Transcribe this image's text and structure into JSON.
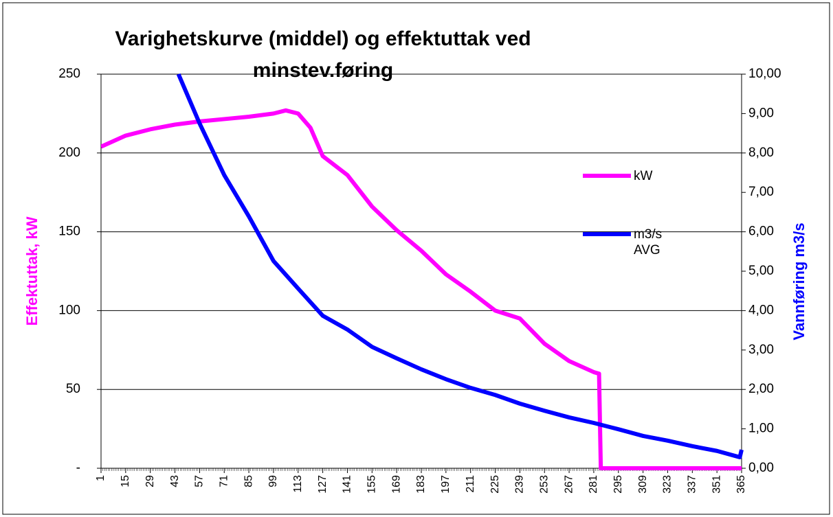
{
  "chart_data": {
    "type": "line",
    "title": [
      "Varighetskurve (middel) og effektuttak ved",
      "minstev.føring"
    ],
    "y_label": "Effektuttak, kW",
    "y2_label": "Vannføring m3/s",
    "xlim": [
      1,
      365
    ],
    "xticks": [
      1,
      15,
      29,
      43,
      57,
      71,
      85,
      99,
      113,
      127,
      141,
      155,
      169,
      183,
      197,
      211,
      225,
      239,
      253,
      267,
      281,
      295,
      309,
      323,
      337,
      351,
      365
    ],
    "ylim": [
      0,
      250
    ],
    "yticks": [
      {
        "value": 0,
        "label": "-"
      },
      50,
      100,
      150,
      200,
      250
    ],
    "y2lim": [
      0,
      10
    ],
    "y2ticks": [
      {
        "value": 0,
        "label": "0,00"
      },
      {
        "value": 1,
        "label": "1,00"
      },
      {
        "value": 2,
        "label": "2,00"
      },
      {
        "value": 3,
        "label": "3,00"
      },
      {
        "value": 4,
        "label": "4,00"
      },
      {
        "value": 5,
        "label": "5,00"
      },
      {
        "value": 6,
        "label": "6,00"
      },
      {
        "value": 7,
        "label": "7,00"
      },
      {
        "value": 8,
        "label": "8,00"
      },
      {
        "value": 9,
        "label": "9,00"
      },
      {
        "value": 10,
        "label": "10,00"
      }
    ],
    "grid": true,
    "legend": "right",
    "series": [
      {
        "name": "kW",
        "color": "#ff00ff",
        "x": [
          1,
          15,
          29,
          43,
          57,
          71,
          85,
          99,
          106,
          113,
          120,
          127,
          141,
          155,
          169,
          183,
          197,
          211,
          225,
          239,
          253,
          267,
          281,
          284,
          285,
          365
        ],
        "values": [
          204,
          211,
          215,
          218,
          220,
          221.5,
          223,
          225,
          227,
          225,
          216,
          198,
          186,
          166,
          151,
          138,
          123,
          112,
          100,
          95,
          79,
          68,
          61,
          60,
          0,
          0
        ]
      },
      {
        "name": "m3/s AVG",
        "color": "#0000ff",
        "axis": "y2",
        "x": [
          45,
          57,
          71,
          85,
          99,
          113,
          127,
          141,
          155,
          169,
          183,
          197,
          211,
          225,
          239,
          253,
          267,
          281,
          295,
          309,
          323,
          337,
          351,
          364,
          365
        ],
        "values": [
          10,
          8.75,
          7.44,
          6.39,
          5.26,
          4.56,
          3.87,
          3.52,
          3.08,
          2.79,
          2.51,
          2.26,
          2.04,
          1.86,
          1.64,
          1.46,
          1.29,
          1.15,
          0.99,
          0.82,
          0.7,
          0.56,
          0.44,
          0.28,
          0.47
        ]
      }
    ]
  }
}
